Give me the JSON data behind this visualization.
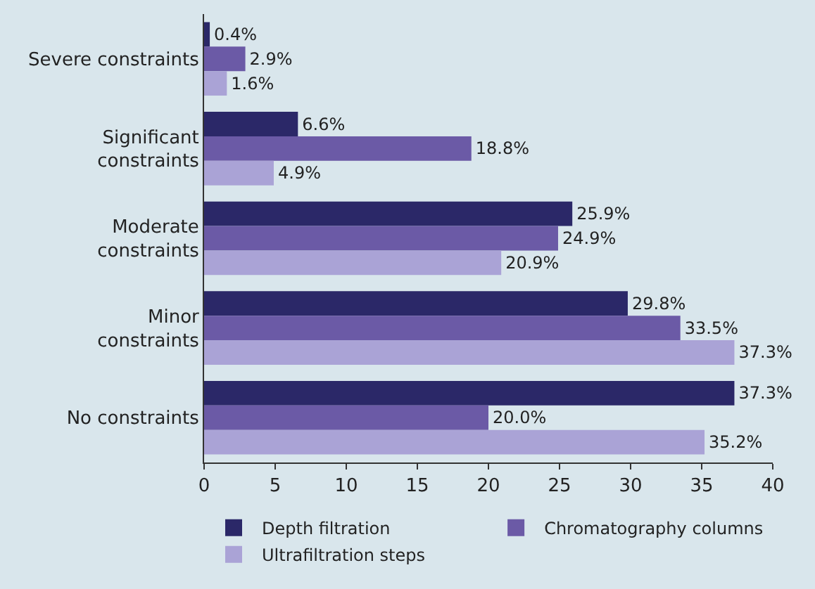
{
  "chart_data": {
    "type": "bar",
    "orientation": "horizontal",
    "categories": [
      "Severe constraints",
      "Significant\nconstraints",
      "Moderate\nconstraints",
      "Minor\nconstraints",
      "No constraints"
    ],
    "series": [
      {
        "name": "Depth filtration",
        "color": "#2b2868",
        "values": [
          0.4,
          6.6,
          25.9,
          29.8,
          37.3
        ],
        "value_labels": [
          "0.4%",
          "6.6%",
          "25.9%",
          "29.8%",
          "37.3%"
        ]
      },
      {
        "name": "Chromatography columns",
        "color": "#6b5aa6",
        "values": [
          2.9,
          18.8,
          24.9,
          33.5,
          20.0
        ],
        "value_labels": [
          "2.9%",
          "18.8%",
          "24.9%",
          "33.5%",
          "20.0%"
        ]
      },
      {
        "name": "Ultrafiltration steps",
        "color": "#aaa3d6",
        "values": [
          1.6,
          4.9,
          20.9,
          37.3,
          35.2
        ],
        "value_labels": [
          "1.6%",
          "4.9%",
          "20.9%",
          "37.3%",
          "35.2%"
        ]
      }
    ],
    "xlim": [
      0,
      40
    ],
    "xticks": [
      0,
      5,
      10,
      15,
      20,
      25,
      30,
      35,
      40
    ],
    "legend": "bottom",
    "grid": false
  }
}
